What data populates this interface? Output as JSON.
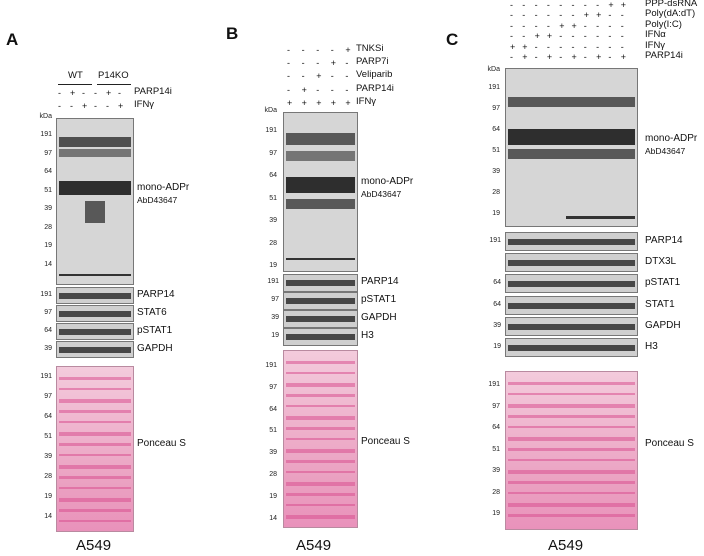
{
  "panels": {
    "A": {
      "letter": "A",
      "groups": {
        "wt": "WT",
        "ko": "P14KO"
      },
      "treatments": [
        {
          "label": "PARP14i",
          "signs": [
            "-",
            "+",
            "-",
            "-",
            "+",
            "-"
          ]
        },
        {
          "label": "IFNγ",
          "signs": [
            "-",
            "-",
            "+",
            "-",
            "-",
            "+"
          ]
        }
      ],
      "kda": "kDa",
      "blot_markers": [
        "191",
        "97",
        "64",
        "51",
        "39",
        "28",
        "19",
        "14"
      ],
      "blot_label": "mono-ADPr",
      "blot_sublabel": "AbD43647",
      "strips": [
        {
          "marker": "191",
          "label": "PARP14"
        },
        {
          "marker": "97",
          "label": "STAT6"
        },
        {
          "marker": "64",
          "label": "pSTAT1"
        },
        {
          "marker": "39",
          "label": "GAPDH"
        }
      ],
      "ponceau_markers": [
        "191",
        "97",
        "64",
        "51",
        "39",
        "28",
        "19",
        "14"
      ],
      "ponceau_label": "Ponceau S",
      "cell_line": "A549"
    },
    "B": {
      "letter": "B",
      "treatments": [
        {
          "label": "TNKSi",
          "signs": [
            "-",
            "-",
            "-",
            "-",
            "+"
          ]
        },
        {
          "label": "PARP7i",
          "signs": [
            "-",
            "-",
            "-",
            "+",
            "-"
          ]
        },
        {
          "label": "Veliparib",
          "signs": [
            "-",
            "-",
            "+",
            "-",
            "-"
          ]
        },
        {
          "label": "PARP14i",
          "signs": [
            "-",
            "+",
            "-",
            "-",
            "-"
          ]
        },
        {
          "label": "IFNγ",
          "signs": [
            "+",
            "+",
            "+",
            "+",
            "+"
          ]
        }
      ],
      "kda": "kDa",
      "blot_markers": [
        "191",
        "97",
        "64",
        "51",
        "39",
        "28",
        "19"
      ],
      "blot_label": "mono-ADPr",
      "blot_sublabel": "AbD43647",
      "strips": [
        {
          "marker": "191",
          "label": "PARP14"
        },
        {
          "marker": "97",
          "label": "pSTAT1"
        },
        {
          "marker": "39",
          "label": "GAPDH"
        },
        {
          "marker": "19",
          "label": "H3"
        }
      ],
      "ponceau_markers": [
        "191",
        "97",
        "64",
        "51",
        "39",
        "28",
        "19",
        "14"
      ],
      "ponceau_label": "Ponceau S",
      "cell_line": "A549"
    },
    "C": {
      "letter": "C",
      "treatments": [
        {
          "label": "PPP-dsRNA",
          "signs": [
            "-",
            "-",
            "-",
            "-",
            "-",
            "-",
            "-",
            "-",
            "+",
            "+"
          ]
        },
        {
          "label": "Poly(dA:dT)",
          "signs": [
            "-",
            "-",
            "-",
            "-",
            "-",
            "-",
            "+",
            "+",
            "-",
            "-"
          ]
        },
        {
          "label": "Poly(I:C)",
          "signs": [
            "-",
            "-",
            "-",
            "-",
            "+",
            "+",
            "-",
            "-",
            "-",
            "-"
          ]
        },
        {
          "label": "IFNα",
          "signs": [
            "-",
            "-",
            "+",
            "+",
            "-",
            "-",
            "-",
            "-",
            "-",
            "-"
          ]
        },
        {
          "label": "IFNγ",
          "signs": [
            "+",
            "+",
            "-",
            "-",
            "-",
            "-",
            "-",
            "-",
            "-",
            "-"
          ]
        },
        {
          "label": "PARP14i",
          "signs": [
            "-",
            "+",
            "-",
            "+",
            "-",
            "+",
            "-",
            "+",
            "-",
            "+"
          ]
        }
      ],
      "kda": "kDa",
      "blot_markers": [
        "191",
        "97",
        "64",
        "51",
        "39",
        "28",
        "19"
      ],
      "blot_label": "mono-ADPr",
      "blot_sublabel": "AbD43647",
      "strips": [
        {
          "marker": "191",
          "label": "PARP14"
        },
        {
          "marker": "",
          "label": "DTX3L"
        },
        {
          "marker": "64",
          "label": "pSTAT1"
        },
        {
          "marker": "64",
          "label": "STAT1"
        },
        {
          "marker": "39",
          "label": "GAPDH"
        },
        {
          "marker": "19",
          "label": "H3"
        }
      ],
      "ponceau_markers": [
        "191",
        "97",
        "64",
        "51",
        "39",
        "28",
        "19"
      ],
      "ponceau_label": "Ponceau S",
      "cell_line": "A549"
    }
  }
}
